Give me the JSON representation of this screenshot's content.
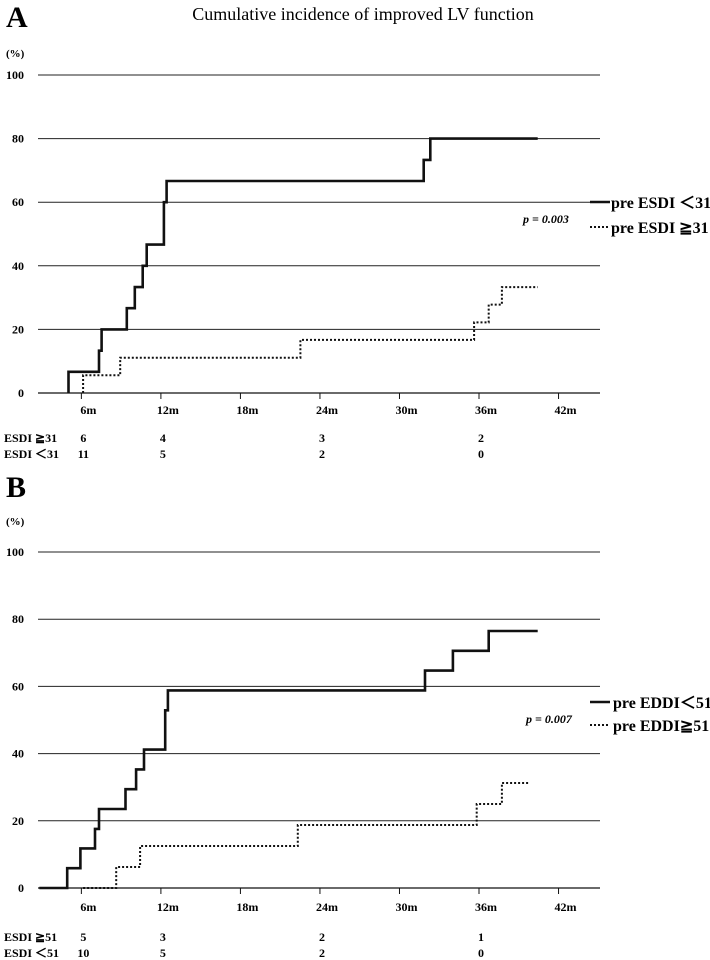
{
  "figure_title": "Cumulative incidence of improved LV function",
  "chart_data": [
    {
      "panel": "A",
      "type": "line",
      "title": "Cumulative incidence of improved LV function",
      "y_unit": "(%)",
      "ylim": [
        0,
        100
      ],
      "y_ticks": [
        "0",
        "20",
        "40",
        "60",
        "80",
        "100"
      ],
      "x_ticks": [
        {
          "label": "6m",
          "value": 6
        },
        {
          "label": "12m",
          "value": 12
        },
        {
          "label": "18m",
          "value": 18
        },
        {
          "label": "24m",
          "value": 24
        },
        {
          "label": "30m",
          "value": 30
        },
        {
          "label": "36m",
          "value": 36
        },
        {
          "label": "42m",
          "value": 42
        }
      ],
      "xlim": [
        2.2,
        44.6
      ],
      "p_value": "p = 0.003",
      "series": [
        {
          "name": "pre ESDI ＜31",
          "style": "solid",
          "points": [
            [
              4.5,
              0
            ],
            [
              4.5,
              6.67
            ],
            [
              6.8,
              6.67
            ],
            [
              6.8,
              13.3
            ],
            [
              7.0,
              13.3
            ],
            [
              7.0,
              20
            ],
            [
              8.9,
              20
            ],
            [
              8.9,
              26.67
            ],
            [
              9.5,
              26.67
            ],
            [
              9.5,
              33.3
            ],
            [
              10.1,
              33.3
            ],
            [
              10.1,
              40
            ],
            [
              10.4,
              40
            ],
            [
              10.4,
              46.67
            ],
            [
              11.7,
              46.67
            ],
            [
              11.7,
              60
            ],
            [
              11.9,
              60
            ],
            [
              11.9,
              66.67
            ],
            [
              31.3,
              66.67
            ],
            [
              31.3,
              73.3
            ],
            [
              31.8,
              73.3
            ],
            [
              31.8,
              80
            ],
            [
              39.9,
              80
            ]
          ]
        },
        {
          "name": "pre ESDI ≧31",
          "style": "dotted",
          "points": [
            [
              5.6,
              0
            ],
            [
              5.6,
              5.56
            ],
            [
              8.4,
              5.56
            ],
            [
              8.4,
              11.1
            ],
            [
              22.0,
              11.1
            ],
            [
              22.0,
              16.7
            ],
            [
              35.1,
              16.7
            ],
            [
              35.1,
              22.2
            ],
            [
              36.2,
              22.2
            ],
            [
              36.2,
              27.8
            ],
            [
              37.2,
              27.8
            ],
            [
              37.2,
              33.3
            ],
            [
              39.9,
              33.3
            ]
          ]
        }
      ],
      "risk_table": [
        {
          "label": "ESDI ≧31",
          "values": [
            "6",
            "4",
            "3",
            "2"
          ]
        },
        {
          "label": "ESDI ＜31",
          "values": [
            "11",
            "5",
            "2",
            "0"
          ]
        }
      ],
      "risk_times": [
        6,
        12,
        24,
        36
      ]
    },
    {
      "panel": "B",
      "type": "line",
      "title": "",
      "y_unit": "(%)",
      "ylim": [
        0,
        100
      ],
      "y_ticks": [
        "0",
        "20",
        "40",
        "60",
        "80",
        "100"
      ],
      "x_ticks": [
        {
          "label": "6m",
          "value": 6
        },
        {
          "label": "12m",
          "value": 12
        },
        {
          "label": "18m",
          "value": 18
        },
        {
          "label": "24m",
          "value": 24
        },
        {
          "label": "30m",
          "value": 30
        },
        {
          "label": "36m",
          "value": 36
        },
        {
          "label": "42m",
          "value": 42
        }
      ],
      "xlim": [
        2.2,
        44.6
      ],
      "p_value": "p = 0.007",
      "series": [
        {
          "name": "pre EDDI＜51",
          "style": "solid",
          "points": [
            [
              2.3,
              0
            ],
            [
              4.4,
              0
            ],
            [
              4.4,
              5.9
            ],
            [
              5.4,
              5.9
            ],
            [
              5.4,
              11.8
            ],
            [
              6.5,
              11.8
            ],
            [
              6.5,
              17.6
            ],
            [
              6.8,
              17.6
            ],
            [
              6.8,
              23.5
            ],
            [
              8.8,
              23.5
            ],
            [
              8.8,
              29.4
            ],
            [
              9.6,
              29.4
            ],
            [
              9.6,
              35.3
            ],
            [
              10.2,
              35.3
            ],
            [
              10.2,
              41.2
            ],
            [
              11.8,
              41.2
            ],
            [
              11.8,
              52.9
            ],
            [
              12.0,
              52.9
            ],
            [
              12.0,
              58.8
            ],
            [
              31.4,
              58.8
            ],
            [
              31.4,
              64.7
            ],
            [
              33.5,
              64.7
            ],
            [
              33.5,
              70.6
            ],
            [
              36.2,
              70.6
            ],
            [
              36.2,
              76.5
            ],
            [
              39.9,
              76.5
            ]
          ]
        },
        {
          "name": "pre EDDI≧51",
          "style": "dotted",
          "points": [
            [
              5.6,
              0
            ],
            [
              8.1,
              0
            ],
            [
              8.1,
              6.25
            ],
            [
              9.9,
              6.25
            ],
            [
              9.9,
              12.5
            ],
            [
              21.8,
              12.5
            ],
            [
              21.8,
              18.75
            ],
            [
              35.3,
              18.75
            ],
            [
              35.3,
              25
            ],
            [
              37.2,
              25
            ],
            [
              37.2,
              31.25
            ],
            [
              39.2,
              31.25
            ]
          ]
        }
      ],
      "risk_table": [
        {
          "label": "ESDI ≧51",
          "values": [
            "5",
            "3",
            "2",
            "1"
          ]
        },
        {
          "label": "ESDI ＜51",
          "values": [
            "10",
            "5",
            "2",
            "0"
          ]
        }
      ],
      "risk_times": [
        6,
        12,
        24,
        36
      ]
    }
  ]
}
